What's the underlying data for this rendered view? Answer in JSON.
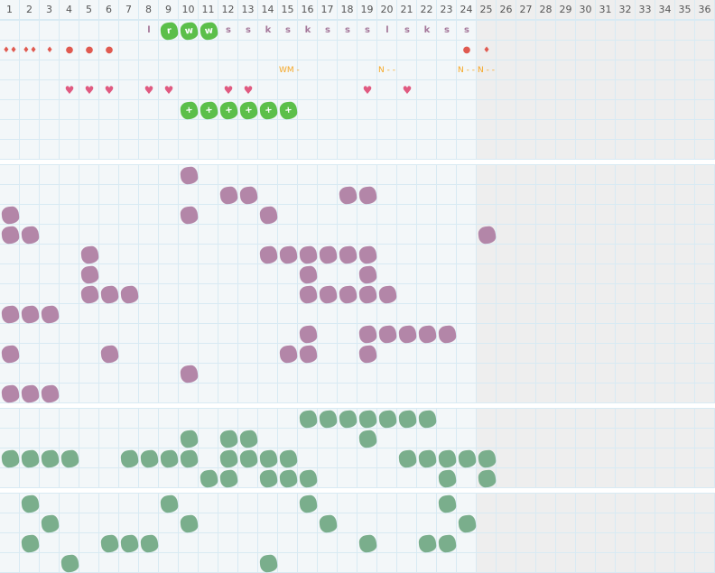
{
  "columns": [
    "1",
    "2",
    "3",
    "4",
    "5",
    "6",
    "7",
    "8",
    "9",
    "10",
    "11",
    "12",
    "13",
    "14",
    "15",
    "16",
    "17",
    "18",
    "19",
    "20",
    "21",
    "22",
    "23",
    "24",
    "25",
    "26",
    "27",
    "28",
    "29",
    "30",
    "31",
    "32",
    "33",
    "34",
    "35",
    "36"
  ],
  "inactive_from_column": 25,
  "colors": {
    "grid_bg": "#f3f7f9",
    "grid_line": "#d8eaf3",
    "inactive_bg": "#eeeeee",
    "purple_blob": "#b386a8",
    "green_blob": "#7aae8c",
    "bright_green": "#5cbf4a",
    "letter": "#a5789a",
    "drop": "#e05a50",
    "heart": "#e05a80",
    "note": "#f5a623"
  },
  "top_section": {
    "rows": 7,
    "letters": [
      {
        "col": 8,
        "text": "l"
      },
      {
        "col": 9,
        "text": "r",
        "highlight": true
      },
      {
        "col": 10,
        "text": "w",
        "highlight": true
      },
      {
        "col": 11,
        "text": "w",
        "highlight": true
      },
      {
        "col": 12,
        "text": "s"
      },
      {
        "col": 13,
        "text": "s"
      },
      {
        "col": 14,
        "text": "k"
      },
      {
        "col": 15,
        "text": "s"
      },
      {
        "col": 16,
        "text": "k"
      },
      {
        "col": 17,
        "text": "s"
      },
      {
        "col": 18,
        "text": "s"
      },
      {
        "col": 19,
        "text": "s"
      },
      {
        "col": 20,
        "text": "l"
      },
      {
        "col": 21,
        "text": "s"
      },
      {
        "col": 22,
        "text": "k"
      },
      {
        "col": 23,
        "text": "s"
      },
      {
        "col": 24,
        "text": "s"
      }
    ],
    "drops": [
      {
        "col": 1,
        "icon": "double-drop-icon",
        "text": "♦♦"
      },
      {
        "col": 2,
        "icon": "double-drop-icon",
        "text": "♦♦"
      },
      {
        "col": 3,
        "icon": "drop-icon",
        "text": "♦"
      },
      {
        "col": 4,
        "icon": "dot-icon",
        "text": "●"
      },
      {
        "col": 5,
        "icon": "dot-icon",
        "text": "●"
      },
      {
        "col": 6,
        "icon": "dot-icon",
        "text": "●"
      },
      {
        "col": 24,
        "icon": "dot-icon",
        "text": "●"
      },
      {
        "col": 25,
        "icon": "drop-icon",
        "text": "♦"
      }
    ],
    "notes": [
      {
        "col": 15,
        "text": "WM -"
      },
      {
        "col": 20,
        "text": "N -  -"
      },
      {
        "col": 24,
        "text": "N -  -"
      },
      {
        "col": 25,
        "text": "N -  -"
      }
    ],
    "hearts": [
      4,
      5,
      6,
      8,
      9,
      12,
      13,
      19,
      21
    ],
    "plus_blobs": [
      10,
      11,
      12,
      13,
      14,
      15
    ],
    "plus_text": "+"
  },
  "sections": [
    {
      "color": "purple",
      "rows": [
        [
          10
        ],
        [
          12,
          13,
          18,
          19
        ],
        [
          1,
          10,
          14
        ],
        [
          1,
          2,
          25
        ],
        [
          5,
          14,
          15,
          16,
          17,
          18,
          19
        ],
        [
          5,
          16,
          19
        ],
        [
          5,
          6,
          7,
          16,
          17,
          18,
          19,
          20
        ],
        [
          1,
          2,
          3
        ],
        [
          16,
          19,
          20,
          21,
          22,
          23
        ],
        [
          1,
          6,
          15,
          16,
          19
        ],
        [
          10
        ],
        [
          1,
          2,
          3
        ]
      ]
    },
    {
      "color": "green",
      "rows": [
        [
          16,
          17,
          18,
          19,
          20,
          21,
          22
        ],
        [
          10,
          12,
          13,
          19
        ],
        [
          1,
          2,
          3,
          4,
          7,
          8,
          9,
          10,
          12,
          13,
          14,
          15,
          21,
          22,
          23,
          24,
          25
        ],
        [
          11,
          12,
          14,
          15,
          16,
          23,
          25
        ]
      ]
    },
    {
      "color": "green",
      "rows": [
        [
          2,
          9,
          16,
          23
        ],
        [
          3,
          10,
          17,
          24
        ],
        [
          2,
          6,
          7,
          8,
          19,
          22,
          23
        ],
        [
          4,
          14
        ]
      ]
    }
  ]
}
